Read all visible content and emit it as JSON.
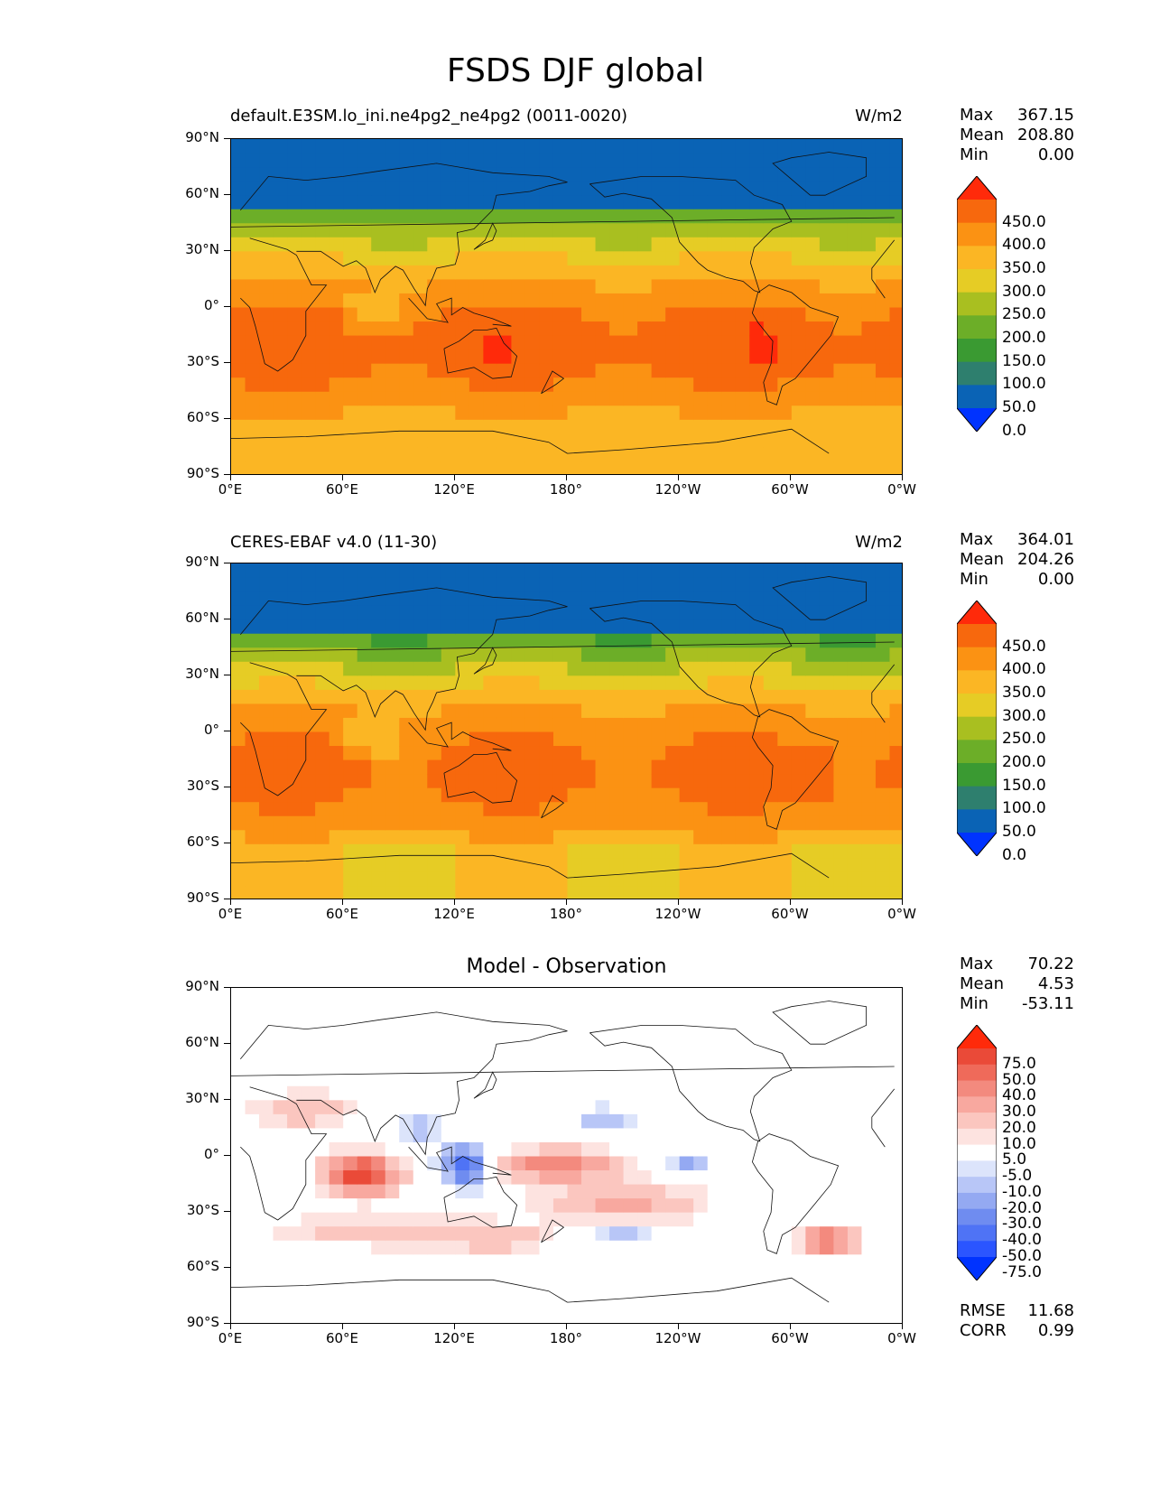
{
  "figure": {
    "title": "FSDS DJF global"
  },
  "axes": {
    "lat_ticks": [
      "90°N",
      "60°N",
      "30°N",
      "0°",
      "30°S",
      "60°S",
      "90°S"
    ],
    "lon_ticks": [
      "0°E",
      "60°E",
      "120°E",
      "180°",
      "120°W",
      "60°W",
      "0°W"
    ]
  },
  "panels": [
    {
      "left_title": "default.E3SM.lo_ini.ne4pg2_ne4pg2 (0011-0020)",
      "right_title": "W/m2",
      "center_title": "",
      "stats": [
        {
          "label": "Max",
          "value": "367.15"
        },
        {
          "label": "Mean",
          "value": "208.80"
        },
        {
          "label": "Min",
          "value": "0.00"
        }
      ],
      "colorbar": {
        "labels": [
          "450.0",
          "400.0",
          "350.0",
          "300.0",
          "250.0",
          "200.0",
          "150.0",
          "100.0",
          "50.0",
          "0.0"
        ],
        "colors": [
          "#0033ff",
          "#0a63b5",
          "#2e7f6e",
          "#3a9a32",
          "#6cae28",
          "#a9bf20",
          "#e6cc25",
          "#fbb624",
          "#fb9213",
          "#f7680d",
          "#ff2a0a"
        ]
      },
      "extra_stats": []
    },
    {
      "left_title": "CERES-EBAF v4.0 (11-30)",
      "right_title": "W/m2",
      "center_title": "",
      "stats": [
        {
          "label": "Max",
          "value": "364.01"
        },
        {
          "label": "Mean",
          "value": "204.26"
        },
        {
          "label": "Min",
          "value": "0.00"
        }
      ],
      "colorbar": {
        "labels": [
          "450.0",
          "400.0",
          "350.0",
          "300.0",
          "250.0",
          "200.0",
          "150.0",
          "100.0",
          "50.0",
          "0.0"
        ],
        "colors": [
          "#0033ff",
          "#0a63b5",
          "#2e7f6e",
          "#3a9a32",
          "#6cae28",
          "#a9bf20",
          "#e6cc25",
          "#fbb624",
          "#fb9213",
          "#f7680d",
          "#ff2a0a"
        ]
      },
      "extra_stats": []
    },
    {
      "left_title": "",
      "right_title": "",
      "center_title": "Model - Observation",
      "stats": [
        {
          "label": "Max",
          "value": "70.22"
        },
        {
          "label": "Mean",
          "value": "4.53"
        },
        {
          "label": "Min",
          "value": "-53.11"
        }
      ],
      "colorbar": {
        "labels": [
          "75.0",
          "50.0",
          "40.0",
          "30.0",
          "20.0",
          "10.0",
          "5.0",
          "-5.0",
          "-10.0",
          "-20.0",
          "-30.0",
          "-40.0",
          "-50.0",
          "-75.0"
        ],
        "colors": [
          "#0033ff",
          "#2b55ff",
          "#4f73f5",
          "#6f8cf0",
          "#94a9f2",
          "#b8c6f7",
          "#dce4fb",
          "#ffffff",
          "#fde3e0",
          "#fbc6bf",
          "#f8a89f",
          "#f38a7e",
          "#ef6a5a",
          "#ea4a38",
          "#ff2a0a"
        ]
      },
      "extra_stats": [
        {
          "label": "RMSE",
          "value": "11.68"
        },
        {
          "label": "CORR",
          "value": "0.99"
        }
      ]
    }
  ]
}
